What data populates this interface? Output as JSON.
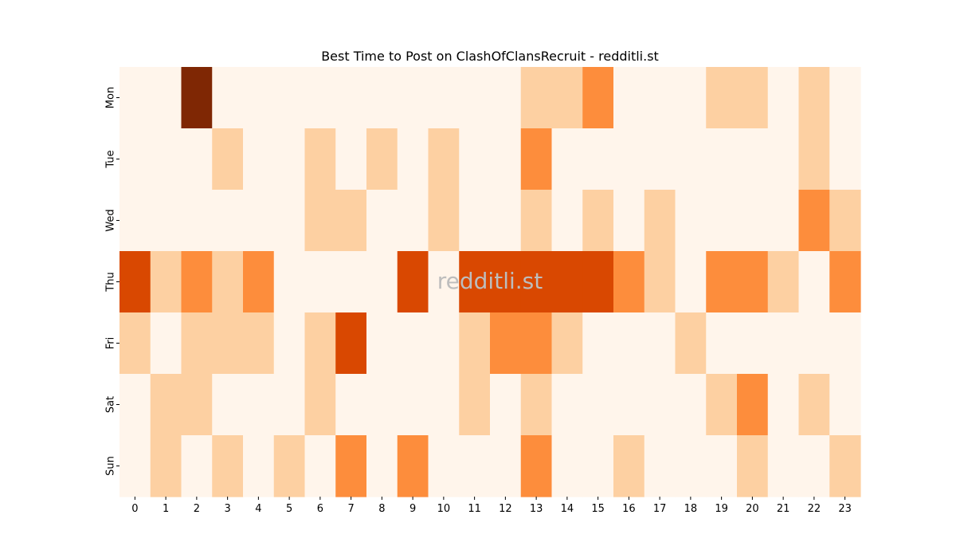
{
  "chart_data": {
    "type": "heatmap",
    "title": "Best Time to Post on ClashOfClansRecruit - redditli.st",
    "watermark": "redditli.st",
    "x_categories": [
      "0",
      "1",
      "2",
      "3",
      "4",
      "5",
      "6",
      "7",
      "8",
      "9",
      "10",
      "11",
      "12",
      "13",
      "14",
      "15",
      "16",
      "17",
      "18",
      "19",
      "20",
      "21",
      "22",
      "23"
    ],
    "y_categories": [
      "Mon",
      "Tue",
      "Wed",
      "Thu",
      "Fri",
      "Sat",
      "Sun"
    ],
    "values": [
      [
        0,
        0,
        4,
        0,
        0,
        0,
        0,
        0,
        0,
        0,
        0,
        0,
        0,
        1,
        1,
        2,
        0,
        0,
        0,
        1,
        1,
        0,
        1,
        0
      ],
      [
        0,
        0,
        0,
        1,
        0,
        0,
        1,
        0,
        1,
        0,
        1,
        0,
        0,
        2,
        0,
        0,
        0,
        0,
        0,
        0,
        0,
        0,
        1,
        0
      ],
      [
        0,
        0,
        0,
        0,
        0,
        0,
        1,
        1,
        0,
        0,
        1,
        0,
        0,
        1,
        0,
        1,
        0,
        1,
        0,
        0,
        0,
        0,
        2,
        1
      ],
      [
        3,
        1,
        2,
        1,
        2,
        0,
        0,
        0,
        0,
        3,
        0,
        3,
        3,
        3,
        3,
        3,
        2,
        1,
        0,
        2,
        2,
        1,
        0,
        2
      ],
      [
        1,
        0,
        1,
        1,
        1,
        0,
        1,
        3,
        0,
        0,
        0,
        1,
        2,
        2,
        1,
        0,
        0,
        0,
        1,
        0,
        0,
        0,
        0,
        0
      ],
      [
        0,
        1,
        1,
        0,
        0,
        0,
        1,
        0,
        0,
        0,
        0,
        1,
        0,
        1,
        0,
        0,
        0,
        0,
        0,
        1,
        2,
        0,
        1,
        0
      ],
      [
        0,
        1,
        0,
        1,
        0,
        1,
        0,
        2,
        0,
        2,
        0,
        0,
        0,
        2,
        0,
        0,
        1,
        0,
        0,
        0,
        1,
        0,
        0,
        1
      ]
    ],
    "color_scale": [
      "#fff5eb",
      "#fdd0a2",
      "#fd8d3c",
      "#d94801",
      "#7f2704"
    ],
    "colorbar": false,
    "grid": false
  }
}
